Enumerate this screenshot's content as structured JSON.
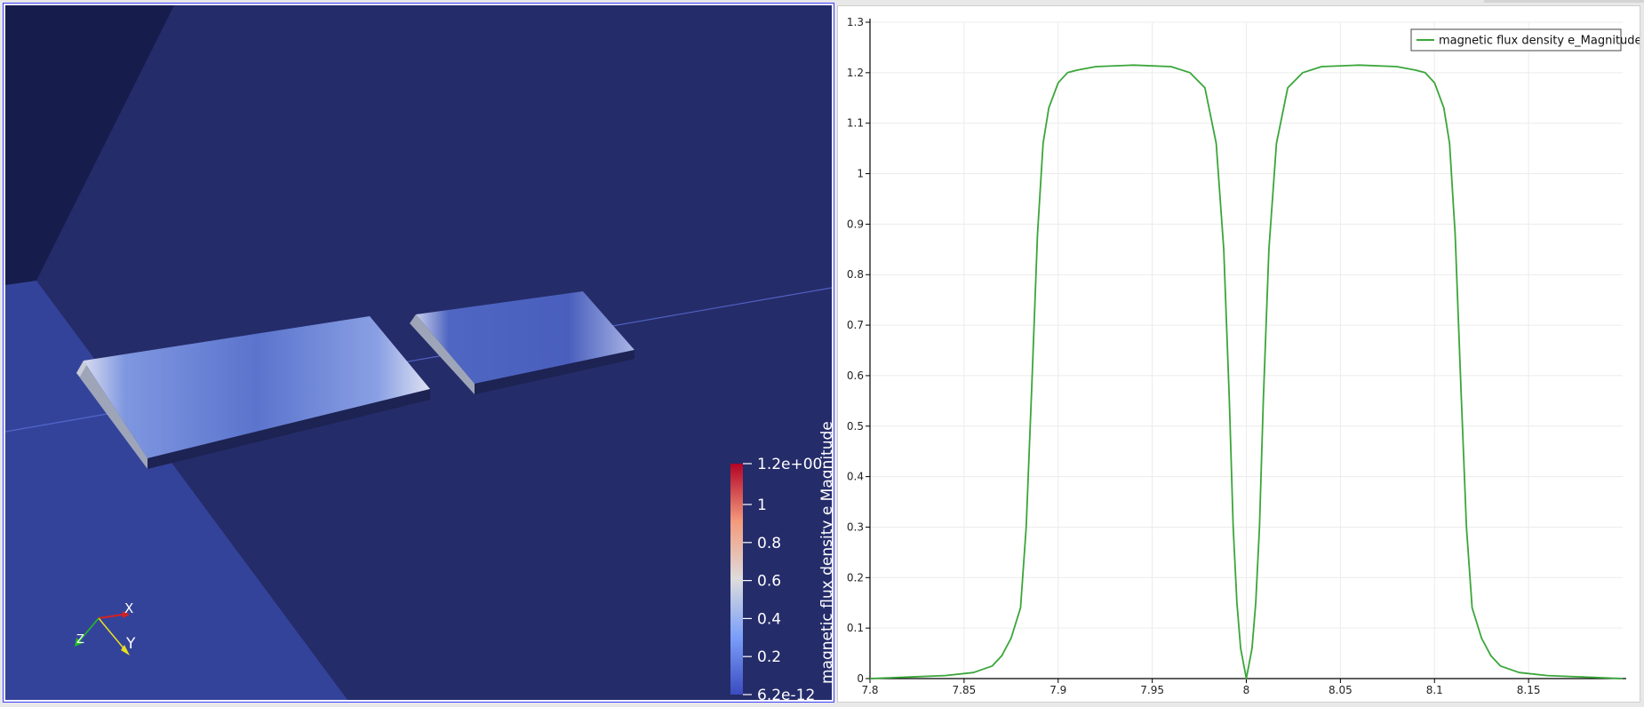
{
  "render_view": {
    "background_color": "#252c6a",
    "colorbar": {
      "title": "magnetic flux density e Magnitude",
      "labels": [
        "1.2e+00",
        "1",
        "0.8",
        "0.6",
        "0.4",
        "0.2",
        "6.2e-12"
      ],
      "colors": [
        "#b40426",
        "#f7f7f7",
        "#3b4cc0"
      ]
    },
    "orientation_axes": {
      "x_label": "X",
      "y_label": "Y",
      "z_label": "Z"
    }
  },
  "chart_data": {
    "type": "line",
    "title": "",
    "xlabel": "",
    "ylabel": "",
    "xlim": [
      7.8,
      8.2
    ],
    "ylim": [
      0,
      1.3
    ],
    "x_ticks": [
      "7.8",
      "7.85",
      "7.9",
      "7.95",
      "8",
      "8.05",
      "8.1",
      "8.15"
    ],
    "y_ticks": [
      "0",
      "0.1",
      "0.2",
      "0.3",
      "0.4",
      "0.5",
      "0.6",
      "0.7",
      "0.8",
      "0.9",
      "1",
      "1.1",
      "1.2",
      "1.3"
    ],
    "grid": true,
    "legend_position": "top-right",
    "series": [
      {
        "name": "magnetic flux density e_Magnitude",
        "color": "#3aa63a",
        "x": [
          7.8,
          7.82,
          7.84,
          7.855,
          7.865,
          7.87,
          7.875,
          7.88,
          7.883,
          7.886,
          7.889,
          7.892,
          7.895,
          7.9,
          7.905,
          7.91,
          7.92,
          7.94,
          7.96,
          7.97,
          7.978,
          7.984,
          7.988,
          7.991,
          7.993,
          7.995,
          7.997,
          8.0,
          8.003,
          8.005,
          8.007,
          8.009,
          8.012,
          8.016,
          8.022,
          8.03,
          8.04,
          8.06,
          8.08,
          8.09,
          8.095,
          8.1,
          8.105,
          8.108,
          8.111,
          8.114,
          8.117,
          8.12,
          8.125,
          8.13,
          8.135,
          8.145,
          8.16,
          8.18,
          8.2
        ],
        "y": [
          0.0,
          0.003,
          0.006,
          0.012,
          0.025,
          0.045,
          0.08,
          0.14,
          0.3,
          0.58,
          0.88,
          1.06,
          1.13,
          1.18,
          1.2,
          1.205,
          1.212,
          1.215,
          1.212,
          1.2,
          1.17,
          1.06,
          0.85,
          0.55,
          0.3,
          0.15,
          0.06,
          0.0,
          0.06,
          0.15,
          0.3,
          0.55,
          0.85,
          1.06,
          1.17,
          1.2,
          1.212,
          1.215,
          1.212,
          1.205,
          1.2,
          1.18,
          1.13,
          1.06,
          0.88,
          0.58,
          0.3,
          0.14,
          0.08,
          0.045,
          0.025,
          0.012,
          0.006,
          0.003,
          0.0
        ]
      }
    ]
  }
}
